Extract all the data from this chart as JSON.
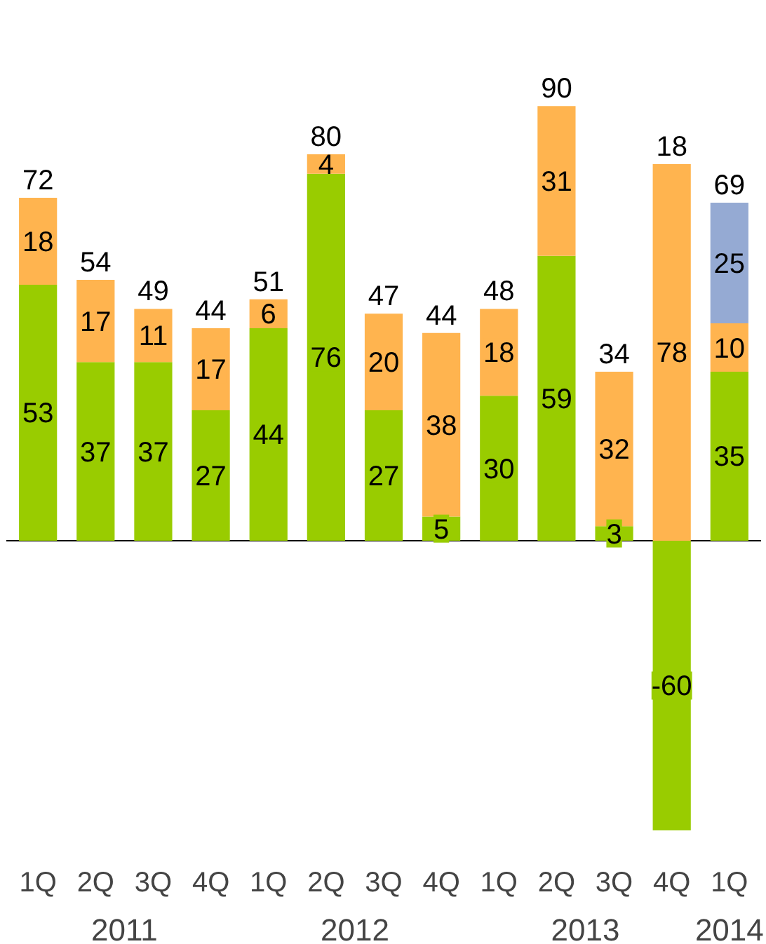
{
  "chart_data": {
    "type": "bar",
    "stacked": true,
    "data_labels": true,
    "categories": [
      "1Q",
      "2Q",
      "3Q",
      "4Q",
      "1Q",
      "2Q",
      "3Q",
      "4Q",
      "1Q",
      "2Q",
      "3Q",
      "4Q",
      "1Q"
    ],
    "series": [
      {
        "color": "#99cc00",
        "values": [
          53,
          37,
          37,
          27,
          44,
          76,
          27,
          5,
          30,
          59,
          3,
          -60,
          35
        ]
      },
      {
        "color": "#ffb44f",
        "values": [
          18,
          17,
          11,
          17,
          6,
          4,
          20,
          38,
          18,
          31,
          32,
          78,
          10
        ]
      },
      {
        "color": "#95aad3",
        "values": [
          null,
          null,
          null,
          null,
          null,
          null,
          null,
          null,
          null,
          null,
          null,
          null,
          25
        ]
      }
    ],
    "totals": [
      "72",
      "54",
      "49",
      "44",
      "51",
      "80",
      "47",
      "44",
      "48",
      "90",
      "34",
      "18",
      "69"
    ],
    "annotations": [
      "2011",
      "2012",
      "2013",
      "2014"
    ],
    "grid": false
  }
}
